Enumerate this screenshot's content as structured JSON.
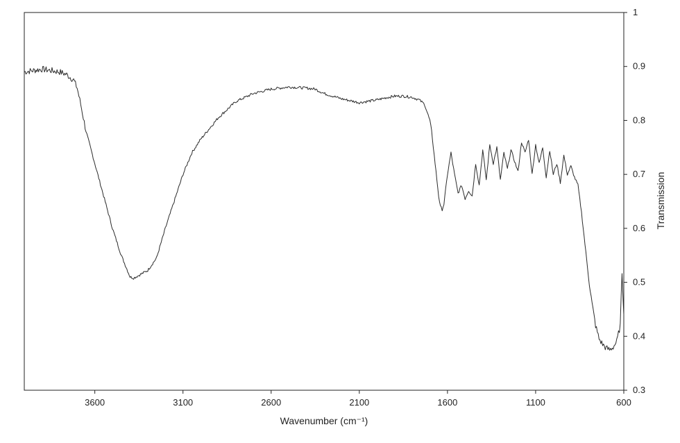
{
  "chart_data": {
    "type": "line",
    "xlabel": "Wavenumber (cm⁻¹)",
    "ylabel": "Transmission",
    "x_axis": {
      "reversed": true,
      "range": [
        4000,
        600
      ],
      "ticks": [
        3600,
        3100,
        2600,
        2100,
        1600,
        1100,
        600
      ]
    },
    "y_axis": {
      "position": "right",
      "range": [
        0.3,
        1.0
      ],
      "ticks": [
        0.3,
        0.4,
        0.5,
        0.6,
        0.7,
        0.8,
        0.9,
        1
      ],
      "tick_labels": [
        "0.3",
        "0.4",
        "0.5",
        "0.6",
        "0.7",
        "0.8",
        "0.9",
        "1"
      ]
    },
    "grid": false,
    "legend": "none",
    "line_color": "#2a2a2a",
    "series": [
      {
        "x": [
          4000,
          3900,
          3800,
          3760,
          3720,
          3700,
          3680,
          3650,
          3600,
          3550,
          3500,
          3450,
          3400,
          3380,
          3350,
          3300,
          3250,
          3200,
          3150,
          3100,
          3050,
          3000,
          2950,
          2900,
          2850,
          2800,
          2700,
          2600,
          2500,
          2400,
          2350,
          2300,
          2200,
          2100,
          2000,
          1950,
          1900,
          1850,
          1800,
          1760,
          1730,
          1700,
          1690,
          1680,
          1670,
          1660,
          1650,
          1640,
          1630,
          1620,
          1600,
          1580,
          1560,
          1540,
          1520,
          1500,
          1480,
          1460,
          1440,
          1420,
          1400,
          1380,
          1360,
          1340,
          1320,
          1300,
          1280,
          1260,
          1240,
          1220,
          1200,
          1180,
          1160,
          1140,
          1120,
          1100,
          1080,
          1060,
          1040,
          1020,
          1000,
          980,
          960,
          940,
          920,
          900,
          880,
          860,
          840,
          820,
          800,
          780,
          760,
          740,
          720,
          700,
          680,
          660,
          640,
          620,
          610,
          600
        ],
        "y": [
          0.89,
          0.895,
          0.89,
          0.885,
          0.875,
          0.86,
          0.83,
          0.78,
          0.72,
          0.66,
          0.6,
          0.55,
          0.51,
          0.508,
          0.513,
          0.522,
          0.545,
          0.6,
          0.65,
          0.7,
          0.74,
          0.765,
          0.785,
          0.805,
          0.82,
          0.835,
          0.85,
          0.858,
          0.862,
          0.86,
          0.858,
          0.85,
          0.84,
          0.833,
          0.838,
          0.842,
          0.845,
          0.845,
          0.843,
          0.838,
          0.83,
          0.8,
          0.78,
          0.75,
          0.72,
          0.69,
          0.66,
          0.64,
          0.635,
          0.645,
          0.7,
          0.74,
          0.7,
          0.665,
          0.68,
          0.655,
          0.67,
          0.66,
          0.72,
          0.68,
          0.745,
          0.69,
          0.755,
          0.72,
          0.75,
          0.69,
          0.74,
          0.71,
          0.745,
          0.725,
          0.705,
          0.76,
          0.74,
          0.765,
          0.7,
          0.755,
          0.72,
          0.75,
          0.695,
          0.745,
          0.7,
          0.72,
          0.685,
          0.735,
          0.7,
          0.715,
          0.695,
          0.68,
          0.63,
          0.57,
          0.51,
          0.46,
          0.42,
          0.395,
          0.385,
          0.378,
          0.375,
          0.38,
          0.39,
          0.42,
          0.52,
          0.44
        ]
      }
    ]
  }
}
